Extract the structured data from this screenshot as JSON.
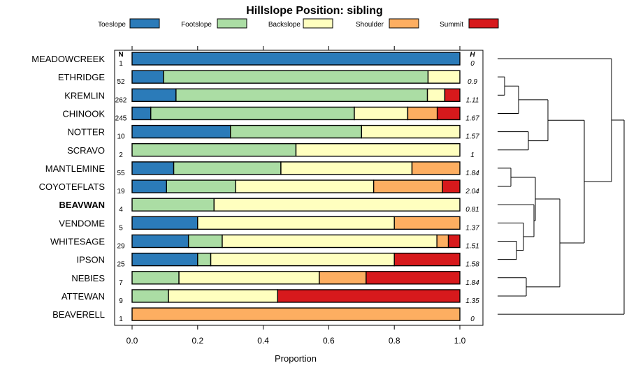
{
  "chart_data": {
    "type": "bar",
    "stacked": true,
    "orientation": "horizontal",
    "title": "Hillslope Position: sibling",
    "xlabel": "Proportion",
    "ylabel": "",
    "xlim": [
      0,
      1
    ],
    "xticks": [
      "0.0",
      "0.2",
      "0.4",
      "0.6",
      "0.8",
      "1.0"
    ],
    "n_header": "N",
    "h_header": "H",
    "legend_position": "top",
    "legend": [
      {
        "name": "Toeslope",
        "color": "#2b7bb9"
      },
      {
        "name": "Footslope",
        "color": "#abdda4"
      },
      {
        "name": "Backslope",
        "color": "#ffffbf"
      },
      {
        "name": "Shoulder",
        "color": "#fdae61"
      },
      {
        "name": "Summit",
        "color": "#d7191c"
      }
    ],
    "rows": [
      {
        "label": "MEADOWCREEK",
        "bold": false,
        "n": "1",
        "h": "0",
        "values": [
          1.0,
          0,
          0,
          0,
          0
        ]
      },
      {
        "label": "ETHRIDGE",
        "bold": false,
        "n": "52",
        "h": "0.9",
        "values": [
          0.096,
          0.807,
          0.097,
          0,
          0
        ]
      },
      {
        "label": "KREMLIN",
        "bold": false,
        "n": "262",
        "h": "1.11",
        "values": [
          0.134,
          0.767,
          0.053,
          0,
          0.046
        ]
      },
      {
        "label": "CHINOOK",
        "bold": false,
        "n": "245",
        "h": "1.67",
        "values": [
          0.057,
          0.621,
          0.163,
          0.09,
          0.069
        ]
      },
      {
        "label": "NOTTER",
        "bold": false,
        "n": "10",
        "h": "1.57",
        "values": [
          0.3,
          0.4,
          0.3,
          0,
          0
        ]
      },
      {
        "label": "SCRAVO",
        "bold": false,
        "n": "2",
        "h": "1",
        "values": [
          0,
          0.5,
          0.5,
          0,
          0
        ]
      },
      {
        "label": "MANTLEMINE",
        "bold": false,
        "n": "55",
        "h": "1.84",
        "values": [
          0.127,
          0.327,
          0.4,
          0.146,
          0
        ]
      },
      {
        "label": "COYOTEFLATS",
        "bold": false,
        "n": "19",
        "h": "2.04",
        "values": [
          0.105,
          0.211,
          0.421,
          0.21,
          0.053
        ]
      },
      {
        "label": "BEAVWAN",
        "bold": true,
        "n": "4",
        "h": "0.81",
        "values": [
          0,
          0.25,
          0.75,
          0,
          0
        ]
      },
      {
        "label": "VENDOME",
        "bold": false,
        "n": "5",
        "h": "1.37",
        "values": [
          0.2,
          0,
          0.6,
          0.2,
          0
        ]
      },
      {
        "label": "WHITESAGE",
        "bold": false,
        "n": "29",
        "h": "1.51",
        "values": [
          0.172,
          0.103,
          0.655,
          0.035,
          0.035
        ]
      },
      {
        "label": "IPSON",
        "bold": false,
        "n": "25",
        "h": "1.58",
        "values": [
          0.2,
          0.04,
          0.56,
          0,
          0.2
        ]
      },
      {
        "label": "NEBIES",
        "bold": false,
        "n": "7",
        "h": "1.84",
        "values": [
          0,
          0.143,
          0.428,
          0.143,
          0.286
        ]
      },
      {
        "label": "ATTEWAN",
        "bold": false,
        "n": "9",
        "h": "1.35",
        "values": [
          0,
          0.111,
          0.333,
          0,
          0.556
        ]
      },
      {
        "label": "BEAVERELL",
        "bold": false,
        "n": "1",
        "h": "0",
        "values": [
          0,
          0,
          0,
          1.0,
          0
        ]
      }
    ]
  }
}
